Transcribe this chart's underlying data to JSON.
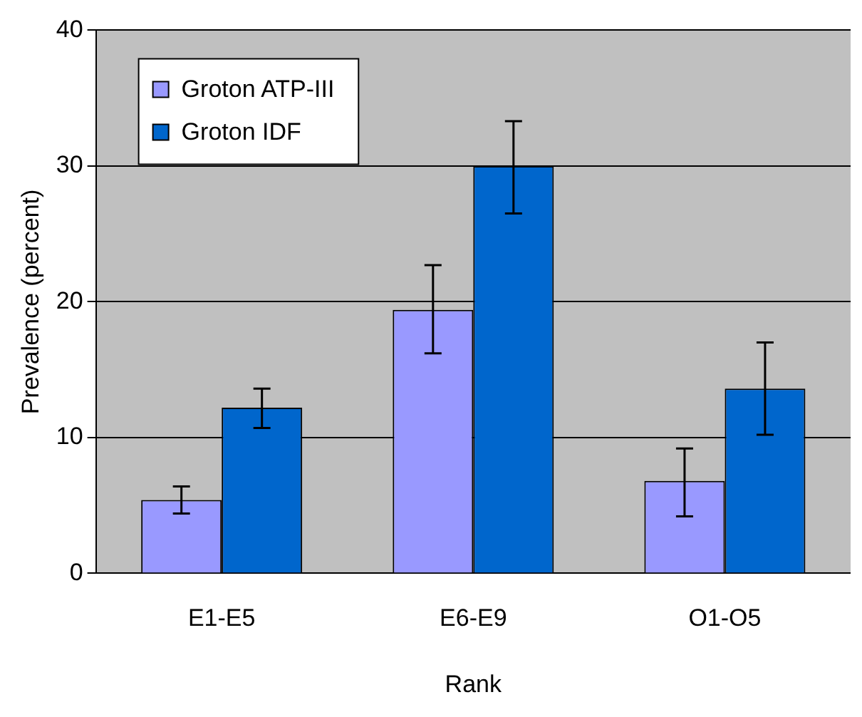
{
  "chart_data": {
    "type": "bar",
    "xlabel": "Rank",
    "ylabel": "Prevalence (percent)",
    "categories": [
      "E1-E5",
      "E6-E9",
      "O1-O5"
    ],
    "series": [
      {
        "name": "Groton ATP-III",
        "color": "#9999ff",
        "values": [
          5.4,
          19.4,
          6.8
        ],
        "errors": [
          [
            4.4,
            6.4
          ],
          [
            16.2,
            22.7
          ],
          [
            4.2,
            9.2
          ]
        ]
      },
      {
        "name": "Groton IDF",
        "color": "#0066cc",
        "values": [
          12.2,
          30.0,
          13.6
        ],
        "errors": [
          [
            10.7,
            13.6
          ],
          [
            26.5,
            33.3
          ],
          [
            10.2,
            17.0
          ]
        ]
      }
    ],
    "ylim": [
      0,
      40
    ],
    "yticks": [
      0,
      10,
      20,
      30,
      40
    ],
    "grid": "y",
    "legend": "top left"
  }
}
